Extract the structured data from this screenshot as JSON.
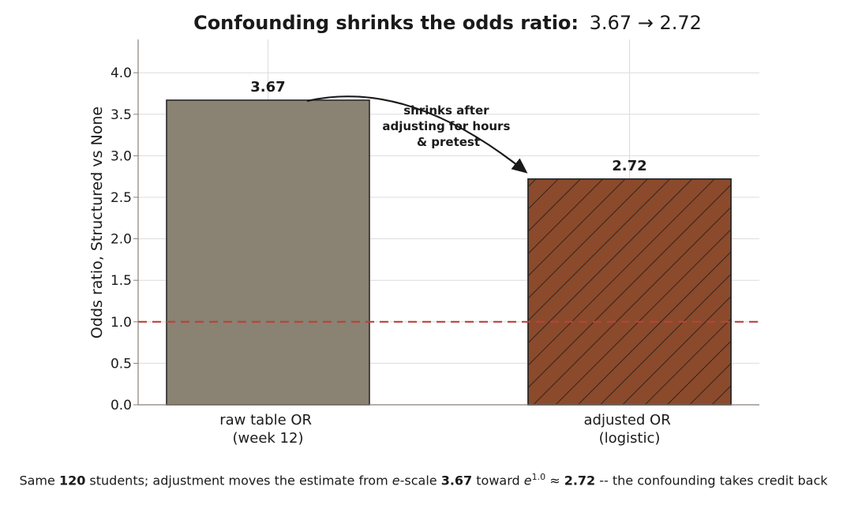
{
  "chart_data": {
    "type": "bar",
    "title_bold": "Confounding shrinks the odds ratio:",
    "title_values": "3.67 → 2.72",
    "ylabel": "Odds ratio, Structured vs None",
    "xlabel": "",
    "ylim": [
      0,
      4.4
    ],
    "yticks": [
      "0.0",
      "0.5",
      "1.0",
      "1.5",
      "2.0",
      "2.5",
      "3.0",
      "3.5",
      "4.0"
    ],
    "ytick_values": [
      0,
      0.5,
      1.0,
      1.5,
      2.0,
      2.5,
      3.0,
      3.5,
      4.0
    ],
    "grid": true,
    "categories": [
      {
        "line1": "raw table OR",
        "line2": "(week 12)"
      },
      {
        "line1": "adjusted OR",
        "line2": "(logistic)"
      }
    ],
    "values": [
      3.67,
      2.72
    ],
    "value_labels": [
      "3.67",
      "2.72"
    ],
    "bar_colors": [
      "#8a8272",
      "#8b4a2b"
    ],
    "bar_hatch": [
      false,
      true
    ],
    "reference_line": {
      "value": 1.0,
      "color": "#b8433a",
      "style": "dashed"
    },
    "annotation": {
      "lines": [
        "shrinks after",
        "adjusting for hours",
        "& pretest"
      ]
    }
  },
  "caption": {
    "prefix": "Same ",
    "n": "120",
    "part1": " students; adjustment moves the estimate from ",
    "e1": "e",
    "part2": "-scale ",
    "v1": "3.67",
    "part3": " toward ",
    "e2": "e",
    "exp": "1.0",
    "approx": " ≈ ",
    "v2": "2.72",
    "suffix": " -- the confounding takes credit back"
  }
}
